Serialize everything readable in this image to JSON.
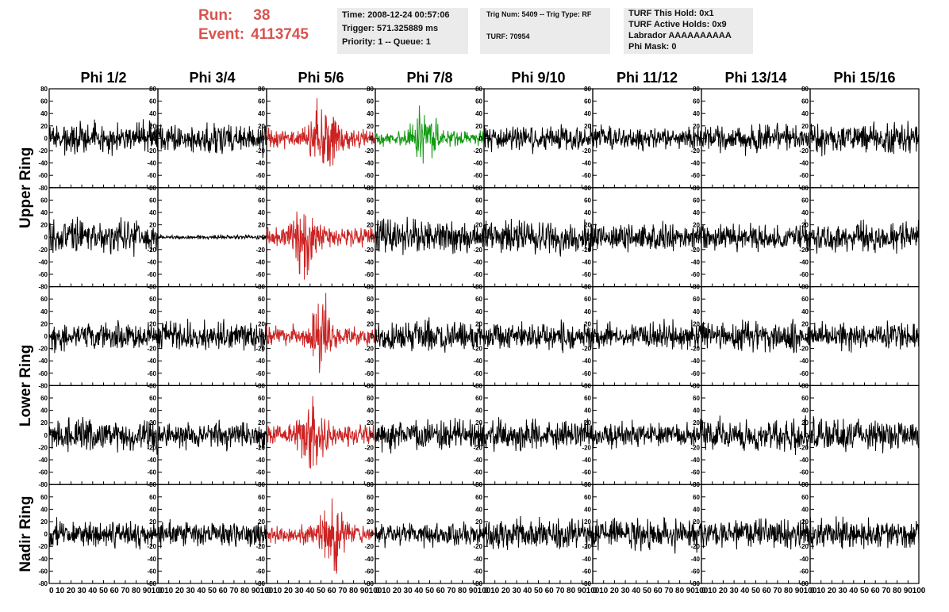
{
  "header": {
    "run_label": "Run:",
    "run_value": "38",
    "event_label": "Event:",
    "event_value": "4113745",
    "time": "Time: 2008-12-24 00:57:06",
    "trigger": "Trigger: 571.325889 ms",
    "priority": "Priority: 1 -- Queue: 1",
    "trig_num": "Trig Num: 5409 -- Trig Type: RF",
    "turf": "TURF: 70954",
    "turf_this_hold": "TURF This Hold: 0x1",
    "turf_active_holds": "TURF Active Holds: 0x9",
    "labrador": "Labrador AAAAAAAAAA",
    "phi_mask": "Phi Mask: 0"
  },
  "chart_data": {
    "type": "line",
    "columns": [
      "Phi 1/2",
      "Phi 3/4",
      "Phi 5/6",
      "Phi 7/8",
      "Phi 9/10",
      "Phi 11/12",
      "Phi 13/14",
      "Phi 15/16"
    ],
    "rows": [
      "Upper Ring",
      "Lower Ring",
      "Nadir Ring"
    ],
    "row_label_spans": [
      2,
      2,
      1
    ],
    "panel_rows": 5,
    "ylim": [
      -80,
      80
    ],
    "xlim": [
      0,
      100
    ],
    "ytick_labels": [
      "-80",
      "-60",
      "-40",
      "-20",
      "0",
      "20",
      "40",
      "60",
      "80"
    ],
    "xtick_labels": [
      "0",
      "10",
      "20",
      "30",
      "40",
      "50",
      "60",
      "70",
      "80",
      "90",
      "100"
    ],
    "colors": {
      "default": "#000000",
      "red": "#cc2222",
      "green": "#119911"
    },
    "panels": [
      [
        {
          "c": "default",
          "a": 14,
          "p": 0
        },
        {
          "c": "default",
          "a": 14,
          "p": 0
        },
        {
          "c": "red",
          "a": 15,
          "p": 52
        },
        {
          "c": "green",
          "a": 12,
          "p": 45
        },
        {
          "c": "default",
          "a": 12,
          "p": 0
        },
        {
          "c": "default",
          "a": 11,
          "p": 0
        },
        {
          "c": "default",
          "a": 13,
          "p": 0
        },
        {
          "c": "default",
          "a": 14,
          "p": 0
        }
      ],
      [
        {
          "c": "default",
          "a": 16,
          "p": 0
        },
        {
          "c": "default",
          "a": 2,
          "p": 0
        },
        {
          "c": "red",
          "a": 16,
          "p": 35
        },
        {
          "c": "default",
          "a": 16,
          "p": 0
        },
        {
          "c": "default",
          "a": 15,
          "p": 0
        },
        {
          "c": "default",
          "a": 13,
          "p": 0
        },
        {
          "c": "default",
          "a": 13,
          "p": 0
        },
        {
          "c": "default",
          "a": 14,
          "p": 0
        }
      ],
      [
        {
          "c": "default",
          "a": 13,
          "p": 0
        },
        {
          "c": "default",
          "a": 14,
          "p": 0
        },
        {
          "c": "red",
          "a": 15,
          "p": 50
        },
        {
          "c": "default",
          "a": 15,
          "p": 0
        },
        {
          "c": "default",
          "a": 13,
          "p": 0
        },
        {
          "c": "default",
          "a": 13,
          "p": 0
        },
        {
          "c": "default",
          "a": 14,
          "p": 0
        },
        {
          "c": "default",
          "a": 13,
          "p": 0
        }
      ],
      [
        {
          "c": "default",
          "a": 15,
          "p": 0
        },
        {
          "c": "default",
          "a": 13,
          "p": 0
        },
        {
          "c": "red",
          "a": 16,
          "p": 42
        },
        {
          "c": "default",
          "a": 14,
          "p": 0
        },
        {
          "c": "default",
          "a": 14,
          "p": 0
        },
        {
          "c": "default",
          "a": 12,
          "p": 0
        },
        {
          "c": "default",
          "a": 15,
          "p": 0
        },
        {
          "c": "default",
          "a": 16,
          "p": 0
        }
      ],
      [
        {
          "c": "default",
          "a": 13,
          "p": 0
        },
        {
          "c": "default",
          "a": 11,
          "p": 0
        },
        {
          "c": "red",
          "a": 14,
          "p": 60
        },
        {
          "c": "default",
          "a": 11,
          "p": 0
        },
        {
          "c": "default",
          "a": 14,
          "p": 0
        },
        {
          "c": "default",
          "a": 15,
          "p": 0
        },
        {
          "c": "default",
          "a": 14,
          "p": 0
        },
        {
          "c": "default",
          "a": 14,
          "p": 0
        }
      ]
    ]
  }
}
